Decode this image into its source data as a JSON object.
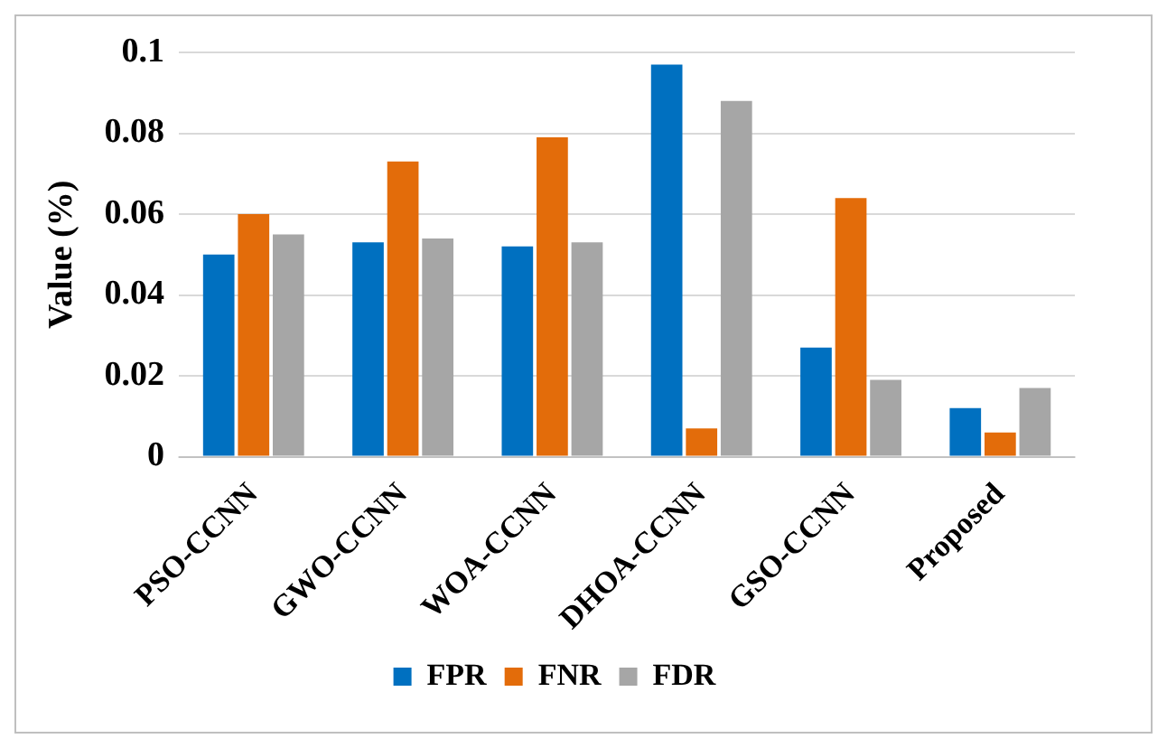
{
  "chart_data": {
    "type": "bar",
    "ylabel": "Value (%)",
    "categories": [
      "PSO-CCNN",
      "GWO-CCNN",
      "WOA-CCNN",
      "DHOA-CCNN",
      "GSO-CCNN",
      "Proposed"
    ],
    "series": [
      {
        "name": "FPR",
        "color": "#0070c0",
        "values": [
          0.05,
          0.053,
          0.052,
          0.097,
          0.027,
          0.012
        ]
      },
      {
        "name": "FNR",
        "color": "#e36c0a",
        "values": [
          0.06,
          0.073,
          0.079,
          0.007,
          0.064,
          0.006
        ]
      },
      {
        "name": "FDR",
        "color": "#a6a6a6",
        "values": [
          0.055,
          0.054,
          0.053,
          0.088,
          0.019,
          0.017
        ]
      }
    ],
    "ylim": [
      0,
      0.1
    ],
    "yticks": [
      0,
      0.02,
      0.04,
      0.06,
      0.08,
      0.1
    ],
    "grid": "y",
    "legend": "bottom"
  }
}
